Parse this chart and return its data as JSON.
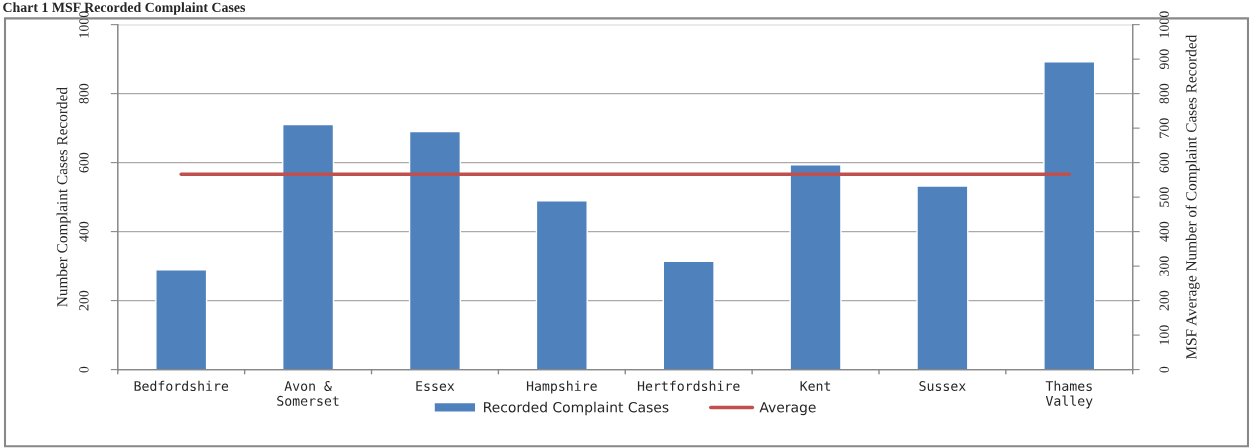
{
  "chart_data": {
    "type": "bar",
    "title": "Chart 1 MSF Recorded Complaint Cases",
    "ylabel": "Number Complaint Cases Recorded",
    "y2label": "MSF Average Number of Complaint Cases Recorded",
    "categories": [
      "Bedfordshire",
      "Avon &\nSomerset",
      "Essex",
      "Hampshire",
      "Hertfordshire",
      "Kent",
      "Sussex",
      "Thames\nValley"
    ],
    "series": [
      {
        "name": "Recorded Complaint Cases",
        "color": "#4f81bd",
        "values": [
          289,
          710,
          690,
          489,
          314,
          594,
          532,
          892
        ]
      },
      {
        "name": "Average",
        "type": "line",
        "axis": "y2",
        "color": "#c0504d",
        "values": [
          566,
          566,
          566,
          566,
          566,
          566,
          566,
          566
        ]
      }
    ],
    "ylim": [
      0,
      1000
    ],
    "yticks": [
      0,
      200,
      400,
      600,
      800,
      1000
    ],
    "y2lim": [
      0,
      1000
    ],
    "y2ticks": [
      0,
      100,
      200,
      300,
      400,
      500,
      600,
      700,
      800,
      900,
      1000
    ],
    "grid": "y",
    "legend": "bottom"
  }
}
